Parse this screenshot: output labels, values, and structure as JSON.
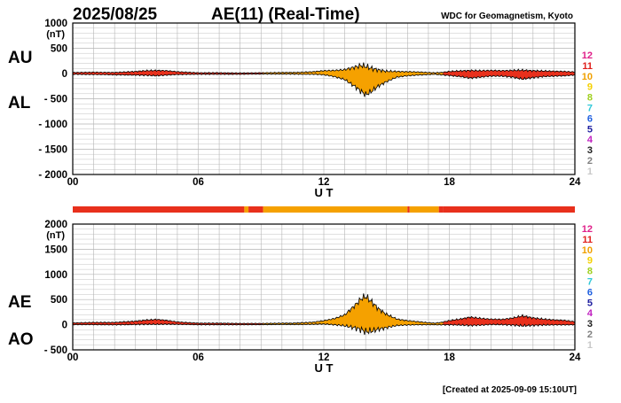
{
  "header": {
    "date": "2025/08/25",
    "title": "AE(11) (Real-Time)",
    "source": "WDC for Geomagnetism, Kyoto"
  },
  "footer": {
    "created": "[Created at 2025-09-09 15:10UT]"
  },
  "colors": {
    "fill_11": "#e8301c",
    "fill_10": "#f5a100",
    "outline": "#000000",
    "grid": "#b4b4b4"
  },
  "station_legend": [
    {
      "label": "12",
      "color": "#e0208a"
    },
    {
      "label": "11",
      "color": "#e0201c"
    },
    {
      "label": "10",
      "color": "#f0a000"
    },
    {
      "label": "9",
      "color": "#f5d000"
    },
    {
      "label": "8",
      "color": "#a0d020"
    },
    {
      "label": "7",
      "color": "#30c8d8"
    },
    {
      "label": "6",
      "color": "#2060e0"
    },
    {
      "label": "5",
      "color": "#2020a0"
    },
    {
      "label": "4",
      "color": "#c020c0"
    },
    {
      "label": "3",
      "color": "#202020"
    },
    {
      "label": "2",
      "color": "#808080"
    },
    {
      "label": "1",
      "color": "#c8c8c8"
    }
  ],
  "station_bar": {
    "segments": [
      {
        "from": 0,
        "to": 8.2,
        "stations": 11
      },
      {
        "from": 8.2,
        "to": 8.4,
        "stations": 10
      },
      {
        "from": 8.4,
        "to": 9.1,
        "stations": 11
      },
      {
        "from": 9.1,
        "to": 16.0,
        "stations": 10
      },
      {
        "from": 16.0,
        "to": 16.1,
        "stations": 11
      },
      {
        "from": 16.1,
        "to": 17.5,
        "stations": 10
      },
      {
        "from": 17.5,
        "to": 17.7,
        "stations": 11
      },
      {
        "from": 17.7,
        "to": 24,
        "stations": 11
      }
    ]
  },
  "chart_data": [
    {
      "type": "area",
      "title": "AU / AL",
      "labels": {
        "upper": "AU",
        "lower": "AL"
      },
      "xlabel": "U T",
      "ylabel": "(nT)",
      "xlim": [
        0,
        24
      ],
      "ylim": [
        -2000,
        1000
      ],
      "xticks": [
        {
          "v": 0,
          "t": "00"
        },
        {
          "v": 6,
          "t": "06"
        },
        {
          "v": 12,
          "t": "12"
        },
        {
          "v": 18,
          "t": "18"
        },
        {
          "v": 24,
          "t": "24"
        }
      ],
      "yticks": [
        {
          "v": 1000,
          "t": "1000"
        },
        {
          "v": 500,
          "t": "500"
        },
        {
          "v": 0,
          "t": "0"
        },
        {
          "v": -500,
          "t": "- 500"
        },
        {
          "v": -1000,
          "t": "- 1000"
        },
        {
          "v": -1500,
          "t": "- 1500"
        },
        {
          "v": -2000,
          "t": "- 2000"
        }
      ],
      "color_bands": [
        {
          "from": 0,
          "to": 9.1,
          "stations": 11
        },
        {
          "from": 9.1,
          "to": 17.7,
          "stations": 10
        },
        {
          "from": 17.7,
          "to": 24,
          "stations": 11
        }
      ],
      "series": [
        {
          "name": "AU",
          "x": [
            0,
            1,
            2,
            3,
            3.5,
            4,
            4.5,
            5,
            6,
            7,
            8,
            9,
            10,
            10.5,
            11,
            11.5,
            12,
            12.5,
            13,
            13.5,
            13.8,
            14,
            14.3,
            14.6,
            15,
            15.5,
            16,
            16.5,
            17,
            17.3,
            17.6,
            18,
            18.5,
            19,
            19.5,
            20,
            20.5,
            21,
            21.5,
            22,
            22.5,
            23,
            23.5,
            24
          ],
          "y": [
            20,
            25,
            20,
            40,
            55,
            60,
            55,
            35,
            15,
            15,
            10,
            15,
            20,
            20,
            25,
            35,
            55,
            60,
            75,
            130,
            160,
            140,
            100,
            70,
            45,
            40,
            35,
            30,
            20,
            15,
            20,
            40,
            50,
            60,
            55,
            60,
            55,
            60,
            65,
            55,
            50,
            45,
            40,
            30
          ]
        },
        {
          "name": "AL",
          "x": [
            0,
            1,
            2,
            3,
            3.5,
            4,
            4.5,
            5,
            6,
            7,
            8,
            9,
            10,
            10.5,
            11,
            11.5,
            12,
            12.5,
            13,
            13.5,
            13.8,
            14,
            14.3,
            14.6,
            15,
            15.5,
            16,
            16.5,
            17,
            17.3,
            17.6,
            18,
            18.5,
            19,
            19.5,
            20,
            20.5,
            21,
            21.5,
            22,
            22.5,
            23,
            23.5,
            24
          ],
          "y": [
            -15,
            -20,
            -25,
            -30,
            -35,
            -45,
            -30,
            -20,
            -15,
            -15,
            -15,
            -10,
            -10,
            -10,
            -15,
            -15,
            -25,
            -60,
            -120,
            -260,
            -360,
            -420,
            -350,
            -250,
            -160,
            -70,
            -45,
            -30,
            -20,
            -15,
            -25,
            -40,
            -60,
            -90,
            -70,
            -50,
            -50,
            -70,
            -110,
            -80,
            -60,
            -50,
            -45,
            -30
          ]
        }
      ]
    },
    {
      "type": "area",
      "title": "AE / AO",
      "labels": {
        "upper": "AE",
        "lower": "AO"
      },
      "xlabel": "U T",
      "ylabel": "(nT)",
      "xlim": [
        0,
        24
      ],
      "ylim": [
        -500,
        2000
      ],
      "xticks": [
        {
          "v": 0,
          "t": "00"
        },
        {
          "v": 6,
          "t": "06"
        },
        {
          "v": 12,
          "t": "12"
        },
        {
          "v": 18,
          "t": "18"
        },
        {
          "v": 24,
          "t": "24"
        }
      ],
      "yticks": [
        {
          "v": 2000,
          "t": "2000"
        },
        {
          "v": 1500,
          "t": "1500"
        },
        {
          "v": 1000,
          "t": "1000"
        },
        {
          "v": 500,
          "t": "500"
        },
        {
          "v": 0,
          "t": "0"
        },
        {
          "v": -500,
          "t": "- 500"
        }
      ],
      "color_bands": [
        {
          "from": 0,
          "to": 9.1,
          "stations": 11
        },
        {
          "from": 9.1,
          "to": 17.7,
          "stations": 10
        },
        {
          "from": 17.7,
          "to": 24,
          "stations": 11
        }
      ],
      "series": [
        {
          "name": "AE",
          "x": [
            0,
            1,
            2,
            3,
            3.5,
            4,
            4.5,
            5,
            6,
            7,
            8,
            9,
            10,
            10.5,
            11,
            11.5,
            12,
            12.5,
            13,
            13.5,
            13.8,
            14,
            14.3,
            14.6,
            15,
            15.5,
            16,
            16.5,
            17,
            17.3,
            17.6,
            18,
            18.5,
            19,
            19.5,
            20,
            20.5,
            21,
            21.5,
            22,
            22.5,
            23,
            23.5,
            24
          ],
          "y": [
            35,
            45,
            45,
            70,
            90,
            105,
            85,
            55,
            30,
            30,
            25,
            25,
            30,
            30,
            40,
            50,
            80,
            120,
            195,
            390,
            520,
            560,
            450,
            320,
            205,
            110,
            80,
            60,
            40,
            30,
            45,
            80,
            110,
            150,
            125,
            110,
            105,
            130,
            175,
            135,
            110,
            95,
            85,
            60
          ]
        },
        {
          "name": "AO",
          "x": [
            0,
            1,
            2,
            3,
            3.5,
            4,
            4.5,
            5,
            6,
            7,
            8,
            9,
            10,
            10.5,
            11,
            11.5,
            12,
            12.5,
            13,
            13.5,
            13.8,
            14,
            14.3,
            14.6,
            15,
            15.5,
            16,
            16.5,
            17,
            17.3,
            17.6,
            18,
            18.5,
            19,
            19.5,
            20,
            20.5,
            21,
            21.5,
            22,
            22.5,
            23,
            23.5,
            24
          ],
          "y": [
            2,
            2,
            -2,
            5,
            10,
            8,
            12,
            8,
            0,
            0,
            -2,
            2,
            5,
            5,
            5,
            10,
            15,
            0,
            -22,
            -65,
            -100,
            -140,
            -125,
            -90,
            -58,
            -15,
            -5,
            0,
            0,
            0,
            -2,
            0,
            -5,
            -15,
            -8,
            5,
            2,
            -5,
            -22,
            -12,
            -5,
            -2,
            -2,
            0
          ]
        }
      ]
    }
  ]
}
